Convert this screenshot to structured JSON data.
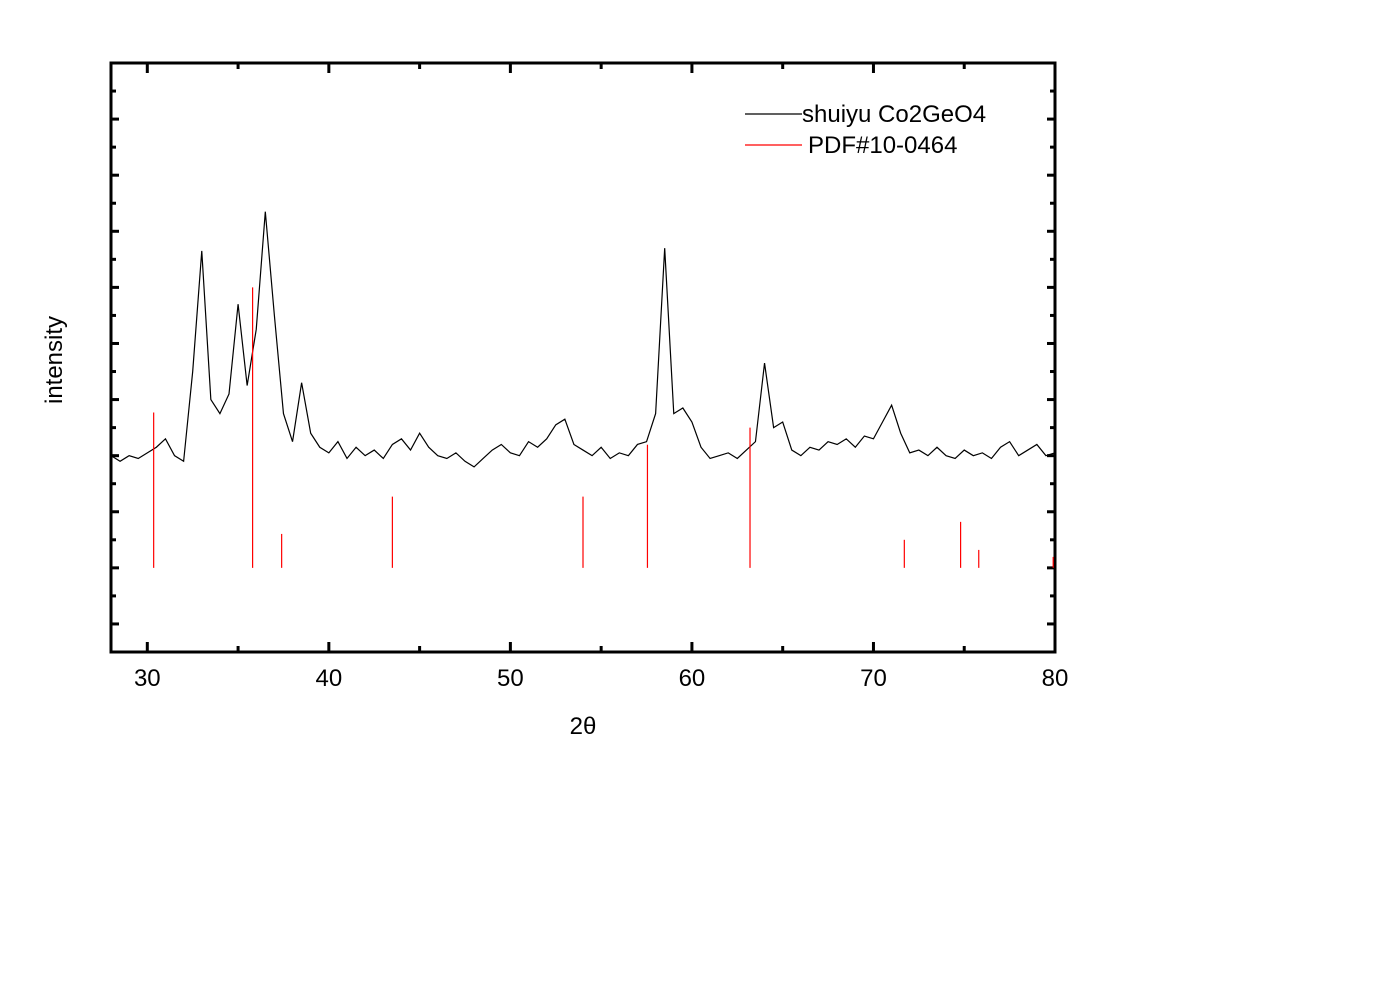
{
  "chart_data": {
    "type": "line",
    "xlabel": "2θ",
    "ylabel": "intensity",
    "xlim": [
      28,
      80
    ],
    "xticks": [
      30,
      40,
      50,
      60,
      70,
      80
    ],
    "xminorticks": [
      35,
      45,
      55,
      65,
      75
    ],
    "ylim": [
      0,
      21
    ],
    "yticks": [
      1,
      3,
      5,
      7,
      9,
      11,
      13,
      15,
      17,
      19,
      21
    ],
    "yminorticks": [
      2,
      4,
      6,
      8,
      10,
      12,
      14,
      16,
      18,
      20
    ],
    "series": [
      {
        "name": "shuiyu Co2GeO4",
        "color": "#000000",
        "type": "line",
        "x": [
          28,
          28.5,
          29,
          29.5,
          30,
          30.5,
          31,
          31.5,
          32,
          32.5,
          33,
          33.5,
          34,
          34.5,
          35,
          35.5,
          36,
          36.5,
          37,
          37.5,
          38,
          38.5,
          39,
          39.5,
          40,
          40.5,
          41,
          41.5,
          42,
          42.5,
          43,
          43.5,
          44,
          44.5,
          45,
          45.5,
          46,
          46.5,
          47,
          47.5,
          48,
          48.5,
          49,
          49.5,
          50,
          50.5,
          51,
          51.5,
          52,
          52.5,
          53,
          53.5,
          54,
          54.5,
          55,
          55.5,
          56,
          56.5,
          57,
          57.5,
          58,
          58.5,
          59,
          59.5,
          60,
          60.5,
          61,
          61.5,
          62,
          62.5,
          63,
          63.5,
          64,
          64.5,
          65,
          65.5,
          66,
          66.5,
          67,
          67.5,
          68,
          68.5,
          69,
          69.5,
          70,
          70.5,
          71,
          71.5,
          72,
          72.5,
          73,
          73.5,
          74,
          74.5,
          75,
          75.5,
          76,
          76.5,
          77,
          77.5,
          78,
          78.5,
          79,
          79.5,
          80
        ],
        "values": [
          7.0,
          6.8,
          7.0,
          6.9,
          7.1,
          7.3,
          7.6,
          7.0,
          6.8,
          10.0,
          14.3,
          9.0,
          8.5,
          9.2,
          12.4,
          9.5,
          11.5,
          15.7,
          12.0,
          8.5,
          7.5,
          9.6,
          7.8,
          7.3,
          7.1,
          7.5,
          6.9,
          7.3,
          7.0,
          7.2,
          6.9,
          7.4,
          7.6,
          7.2,
          7.8,
          7.3,
          7.0,
          6.9,
          7.1,
          6.8,
          6.6,
          6.9,
          7.2,
          7.4,
          7.1,
          7.0,
          7.5,
          7.3,
          7.6,
          8.1,
          8.3,
          7.4,
          7.2,
          7.0,
          7.3,
          6.9,
          7.1,
          7.0,
          7.4,
          7.5,
          8.5,
          14.4,
          8.5,
          8.7,
          8.2,
          7.3,
          6.9,
          7.0,
          7.1,
          6.9,
          7.2,
          7.5,
          10.3,
          8.0,
          8.2,
          7.2,
          7.0,
          7.3,
          7.2,
          7.5,
          7.4,
          7.6,
          7.3,
          7.7,
          7.6,
          8.2,
          8.8,
          7.8,
          7.1,
          7.2,
          7.0,
          7.3,
          7.0,
          6.9,
          7.2,
          7.0,
          7.1,
          6.9,
          7.3,
          7.5,
          7.0,
          7.2,
          7.4,
          7.0,
          7.1
        ]
      },
      {
        "name": "PDF#10-0464",
        "color": "#ff0000",
        "type": "stick",
        "base": 3,
        "x": [
          30.35,
          35.8,
          37.4,
          43.5,
          54.0,
          57.55,
          63.2,
          71.7,
          74.8,
          75.8,
          79.9
        ],
        "values": [
          8.54,
          13.0,
          4.21,
          5.54,
          5.54,
          7.39,
          8.0,
          4.0,
          4.64,
          3.64,
          3.39
        ]
      }
    ]
  }
}
